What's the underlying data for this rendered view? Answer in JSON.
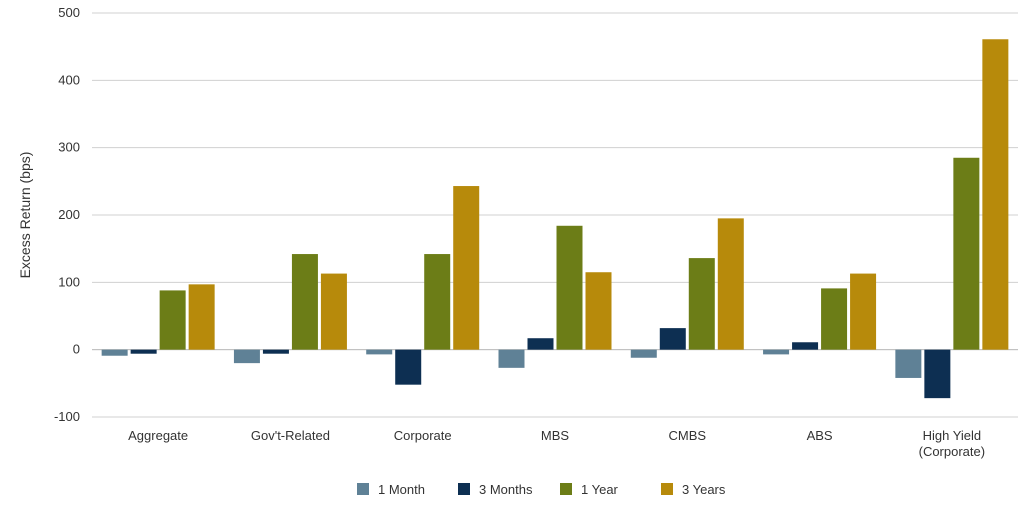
{
  "chart_data": {
    "type": "bar",
    "title": "",
    "xlabel": "",
    "ylabel": "Excess Return (bps)",
    "ylim": [
      -100,
      500
    ],
    "yticks": [
      -100,
      0,
      100,
      200,
      300,
      400,
      500
    ],
    "grid": "horizontal",
    "legend_position": "bottom",
    "categories": [
      [
        "Aggregate"
      ],
      [
        "Gov't-Related"
      ],
      [
        "Corporate"
      ],
      [
        "MBS"
      ],
      [
        "CMBS"
      ],
      [
        "ABS"
      ],
      [
        "High Yield",
        "(Corporate)"
      ]
    ],
    "series": [
      {
        "name": "1 Month",
        "color": "#5f8196",
        "values": [
          -9,
          -20,
          -7,
          -27,
          -12,
          -7,
          -42
        ]
      },
      {
        "name": "3 Months",
        "color": "#0d2f52",
        "values": [
          -6,
          -6,
          -52,
          17,
          32,
          11,
          -72
        ]
      },
      {
        "name": "1 Year",
        "color": "#6c7d17",
        "values": [
          88,
          142,
          142,
          184,
          136,
          91,
          285
        ]
      },
      {
        "name": "3 Years",
        "color": "#b78a0b",
        "values": [
          97,
          113,
          243,
          115,
          195,
          113,
          461
        ]
      }
    ]
  }
}
